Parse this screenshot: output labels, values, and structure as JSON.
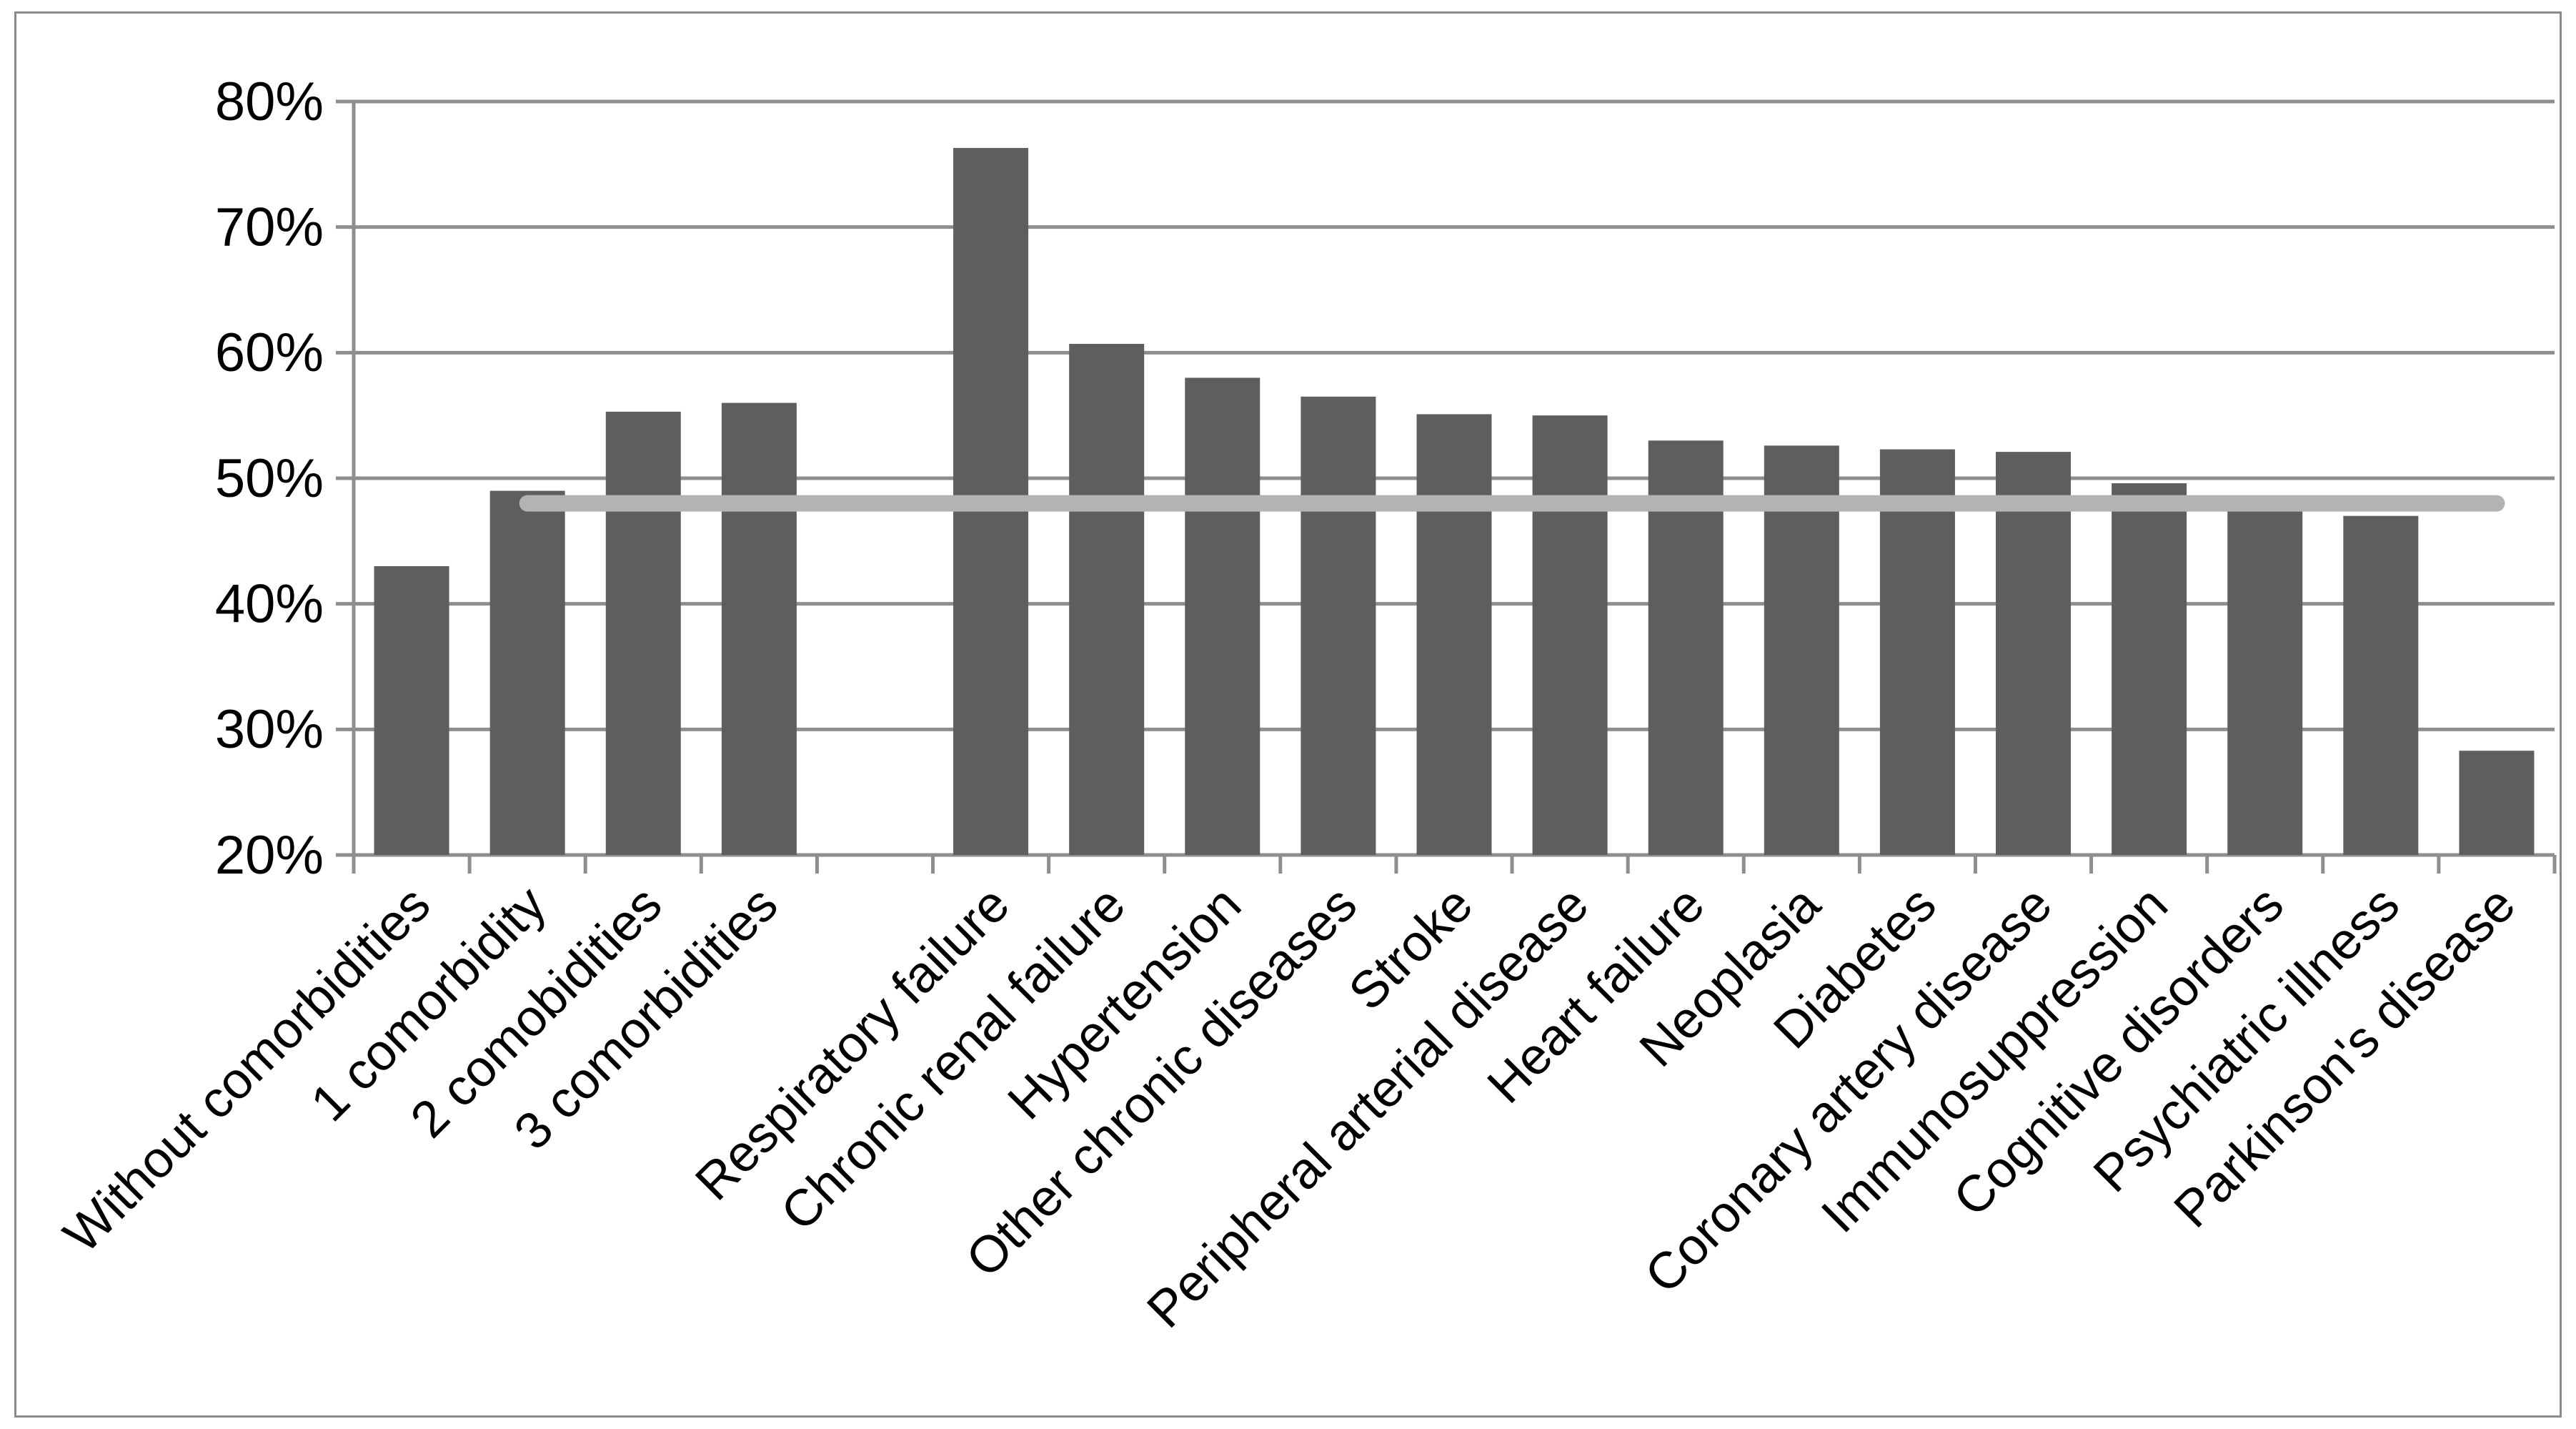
{
  "figure": {
    "description": "Bar chart of mortality percentage by comorbidity count and comorbidity type, with a light gray horizontal reference line at the overall average",
    "background_color": "#ffffff",
    "border_color": "#8a8a8a"
  },
  "chart_data": {
    "type": "bar",
    "title": "",
    "xlabel": "",
    "ylabel": "",
    "categories": [
      "Without comorbidities",
      "1 comorbidity",
      "2 comobidities",
      "3 comorbidities",
      "",
      "Respiratory failure",
      "Chronic renal failure",
      "Hypertension",
      "Other chronic diseases",
      "Stroke",
      "Peripheral arterial disease",
      "Heart failure",
      "Neoplasia",
      "Diabetes",
      "Coronary artery disease",
      "Immunosuppression",
      "Cognitive disorders",
      "Psychiatric illness",
      "Parkinson's disease"
    ],
    "values": [
      43.0,
      49.0,
      55.3,
      56.0,
      null,
      76.3,
      60.7,
      58.0,
      56.5,
      55.1,
      55.0,
      53.0,
      52.6,
      52.3,
      52.1,
      49.6,
      47.4,
      47.0,
      28.3
    ],
    "ylim": [
      20,
      80
    ],
    "ytick_step": 10,
    "ytick_labels": [
      "20%",
      "30%",
      "40%",
      "50%",
      "60%",
      "70%",
      "80%"
    ],
    "grid": true,
    "legend": null,
    "reference_line": {
      "value": 48.0,
      "start_category_index": 1,
      "end_category_index": 18,
      "color": "#b3b3b3"
    },
    "style": {
      "bar_color": "#5e5e5e",
      "gridline_color": "#8e8e8e",
      "axis_color": "#8e8e8e",
      "text_color": "#000000",
      "x_label_rotation_deg": -45
    }
  }
}
